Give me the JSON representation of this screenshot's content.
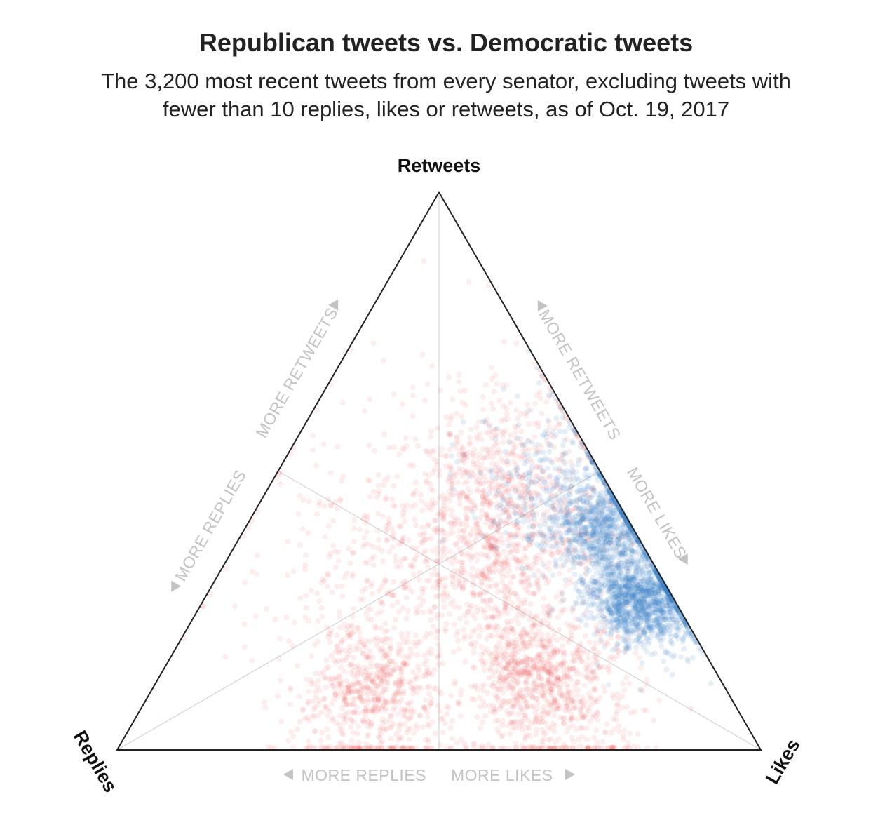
{
  "header": {
    "title": "Republican tweets vs. Democratic tweets",
    "subtitle": "The 3,200 most recent tweets from every senator, excluding tweets with fewer than 10 replies, likes or retweets, as of Oct. 19, 2017"
  },
  "chart_data": {
    "type": "scatter",
    "subtype": "ternary",
    "vertices": {
      "top": "Retweets",
      "left": "Replies",
      "right": "Likes"
    },
    "direction_labels": {
      "left_edge_upper": "MORE RETWEETS",
      "left_edge_lower": "MORE REPLIES",
      "right_edge_upper": "MORE RETWEETS",
      "right_edge_lower": "MORE LIKES",
      "bottom_left": "MORE REPLIES",
      "bottom_right": "MORE LIKES"
    },
    "grid": "medians to centroid",
    "series": [
      {
        "party": "Republican",
        "color": "#e8534a",
        "clusters": [
          {
            "replies": 0.55,
            "likes": 0.35,
            "retweets": 0.1,
            "spread": 0.08,
            "weight": 0.22
          },
          {
            "replies": 0.28,
            "likes": 0.6,
            "retweets": 0.12,
            "spread": 0.08,
            "weight": 0.3
          },
          {
            "replies": 0.22,
            "likes": 0.42,
            "retweets": 0.36,
            "spread": 0.11,
            "weight": 0.22
          },
          {
            "replies": 0.15,
            "likes": 0.35,
            "retweets": 0.5,
            "spread": 0.1,
            "weight": 0.14
          },
          {
            "replies": 0.4,
            "likes": 0.25,
            "retweets": 0.35,
            "spread": 0.13,
            "weight": 0.12
          }
        ]
      },
      {
        "party": "Democratic",
        "color": "#3f84c8",
        "clusters": [
          {
            "replies": 0.05,
            "likes": 0.68,
            "retweets": 0.27,
            "spread": 0.05,
            "weight": 0.55
          },
          {
            "replies": 0.04,
            "likes": 0.56,
            "retweets": 0.4,
            "spread": 0.05,
            "weight": 0.3
          },
          {
            "replies": 0.08,
            "likes": 0.45,
            "retweets": 0.47,
            "spread": 0.09,
            "weight": 0.15
          }
        ]
      }
    ]
  }
}
